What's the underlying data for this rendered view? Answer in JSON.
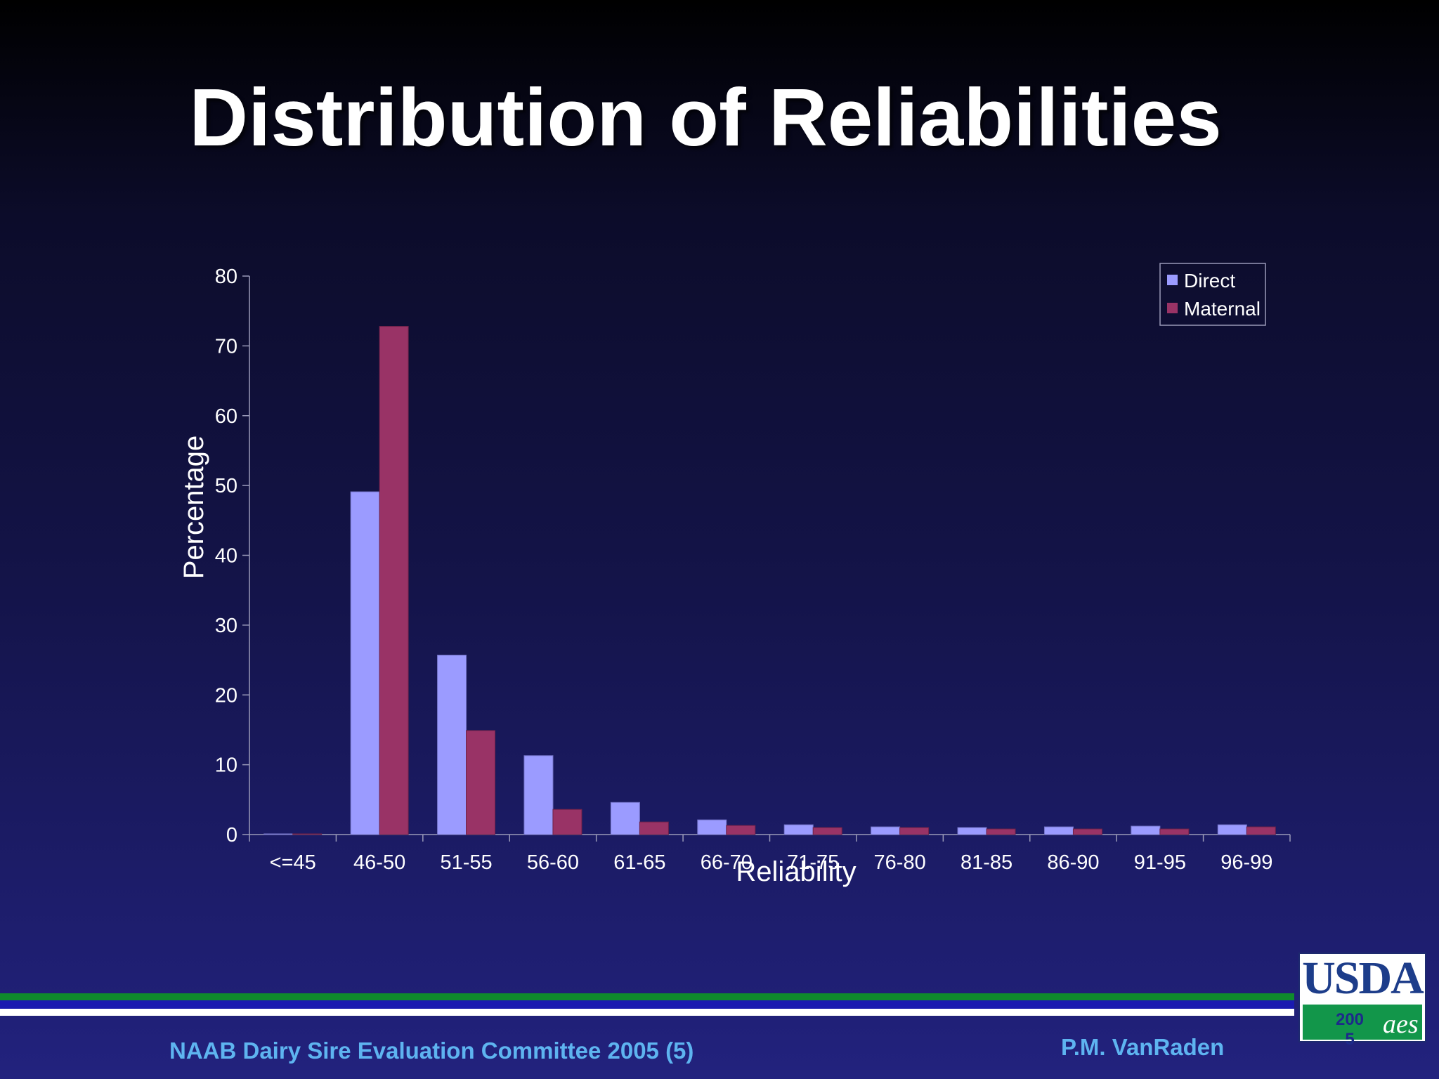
{
  "title": "Distribution of Reliabilities",
  "footer": {
    "left": "NAAB Dairy Sire Evaluation Committee 2005 (5)",
    "right": "P.M. VanRaden"
  },
  "logo": {
    "name": "USDA",
    "year_line1": "200",
    "year_line2": "5",
    "mark": "aes"
  },
  "colors": {
    "direct": "#9b9bff",
    "maternal": "#993366",
    "stripe_green": "#0f8a2c",
    "stripe_blue": "#1a1ab0",
    "stripe_white": "#ffffff"
  },
  "chart_data": {
    "type": "bar",
    "title": "",
    "xlabel": "Reliability",
    "ylabel": "Percentage",
    "ylim": [
      0,
      80
    ],
    "yticks": [
      0,
      10,
      20,
      30,
      40,
      50,
      60,
      70,
      80
    ],
    "grid": false,
    "legend_position": "top-right",
    "categories": [
      "<=45",
      "46-50",
      "51-55",
      "56-60",
      "61-65",
      "66-70",
      "71-75",
      "76-80",
      "81-85",
      "86-90",
      "91-95",
      "96-99"
    ],
    "series": [
      {
        "name": "Direct",
        "values": [
          0.1,
          49.1,
          25.7,
          11.3,
          4.6,
          2.1,
          1.4,
          1.1,
          1.0,
          1.1,
          1.2,
          1.4
        ]
      },
      {
        "name": "Maternal",
        "values": [
          0.1,
          72.8,
          14.9,
          3.6,
          1.8,
          1.3,
          1.0,
          1.0,
          0.8,
          0.8,
          0.8,
          1.1
        ]
      }
    ]
  }
}
